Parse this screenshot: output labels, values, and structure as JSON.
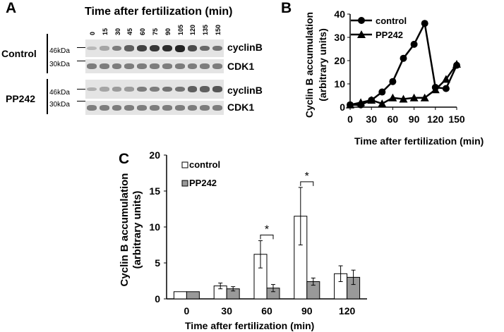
{
  "panel_a": {
    "letter": "A",
    "title": "Time after fertilization (min)",
    "lanes": [
      "0",
      "15",
      "30",
      "45",
      "60",
      "75",
      "90",
      "105",
      "120",
      "135",
      "150"
    ],
    "groups": [
      {
        "label": "Control",
        "markers": [
          "46kDa",
          "30kDa"
        ],
        "bands": [
          "cyclinB",
          "CDK1"
        ],
        "cyclin_intensity": [
          0.25,
          0.35,
          0.55,
          0.7,
          0.85,
          0.9,
          0.95,
          1.0,
          0.8,
          0.65,
          0.6
        ],
        "cdk_intensity": [
          0.55,
          0.55,
          0.55,
          0.55,
          0.55,
          0.55,
          0.55,
          0.55,
          0.55,
          0.55,
          0.55
        ]
      },
      {
        "label": "PP242",
        "markers": [
          "46kDa",
          "30kDa"
        ],
        "bands": [
          "cyclinB",
          "CDK1"
        ],
        "cyclin_intensity": [
          0.3,
          0.35,
          0.4,
          0.4,
          0.55,
          0.55,
          0.6,
          0.6,
          0.7,
          0.7,
          0.75
        ],
        "cdk_intensity": [
          0.55,
          0.55,
          0.55,
          0.55,
          0.55,
          0.55,
          0.55,
          0.55,
          0.55,
          0.55,
          0.55
        ]
      }
    ]
  },
  "panel_b": {
    "letter": "B"
  },
  "panel_c": {
    "letter": "C"
  },
  "chart_data": [
    {
      "type": "line",
      "xlabel": "Time after fertilization (min)",
      "ylabel": "Cyclin B accumulation (arbitrary units)",
      "xlim": [
        0,
        150
      ],
      "ylim": [
        0,
        40
      ],
      "xticks": [
        0,
        30,
        60,
        90,
        120,
        150
      ],
      "yticks": [
        0,
        10,
        20,
        30,
        40
      ],
      "legend": "top-left",
      "grid": false,
      "series": [
        {
          "name": "control",
          "marker": "circle",
          "x": [
            0,
            15,
            30,
            45,
            60,
            75,
            90,
            105,
            120,
            135,
            150
          ],
          "y": [
            1,
            1,
            3,
            6.5,
            11,
            21,
            27,
            36,
            8.5,
            8,
            18
          ]
        },
        {
          "name": "PP242",
          "marker": "triangle",
          "x": [
            0,
            15,
            30,
            45,
            60,
            75,
            90,
            105,
            120,
            135,
            150
          ],
          "y": [
            1,
            2,
            3,
            1.5,
            4,
            3.5,
            4,
            4,
            7.5,
            12,
            18.5
          ]
        }
      ]
    },
    {
      "type": "bar",
      "xlabel": "Time after fertilization (min)",
      "ylabel": "Cyclin B accumulation (arbitrary units)",
      "categories": [
        "0",
        "30",
        "60",
        "90",
        "120"
      ],
      "ylim": [
        0,
        20
      ],
      "yticks": [
        0,
        5,
        10,
        15,
        20
      ],
      "legend": "top-left",
      "grid": false,
      "series": [
        {
          "name": "control",
          "color": "#ffffff",
          "values": [
            1,
            1.8,
            6.2,
            11.5,
            3.5
          ],
          "errors": [
            0,
            0.4,
            1.9,
            4.0,
            1.1
          ]
        },
        {
          "name": "PP242",
          "color": "#999999",
          "values": [
            1,
            1.4,
            1.5,
            2.4,
            3.0
          ],
          "errors": [
            0,
            0.3,
            0.5,
            0.5,
            1.0
          ]
        }
      ],
      "annotations": [
        {
          "category": "60",
          "text": "*"
        },
        {
          "category": "90",
          "text": "*"
        }
      ]
    }
  ]
}
